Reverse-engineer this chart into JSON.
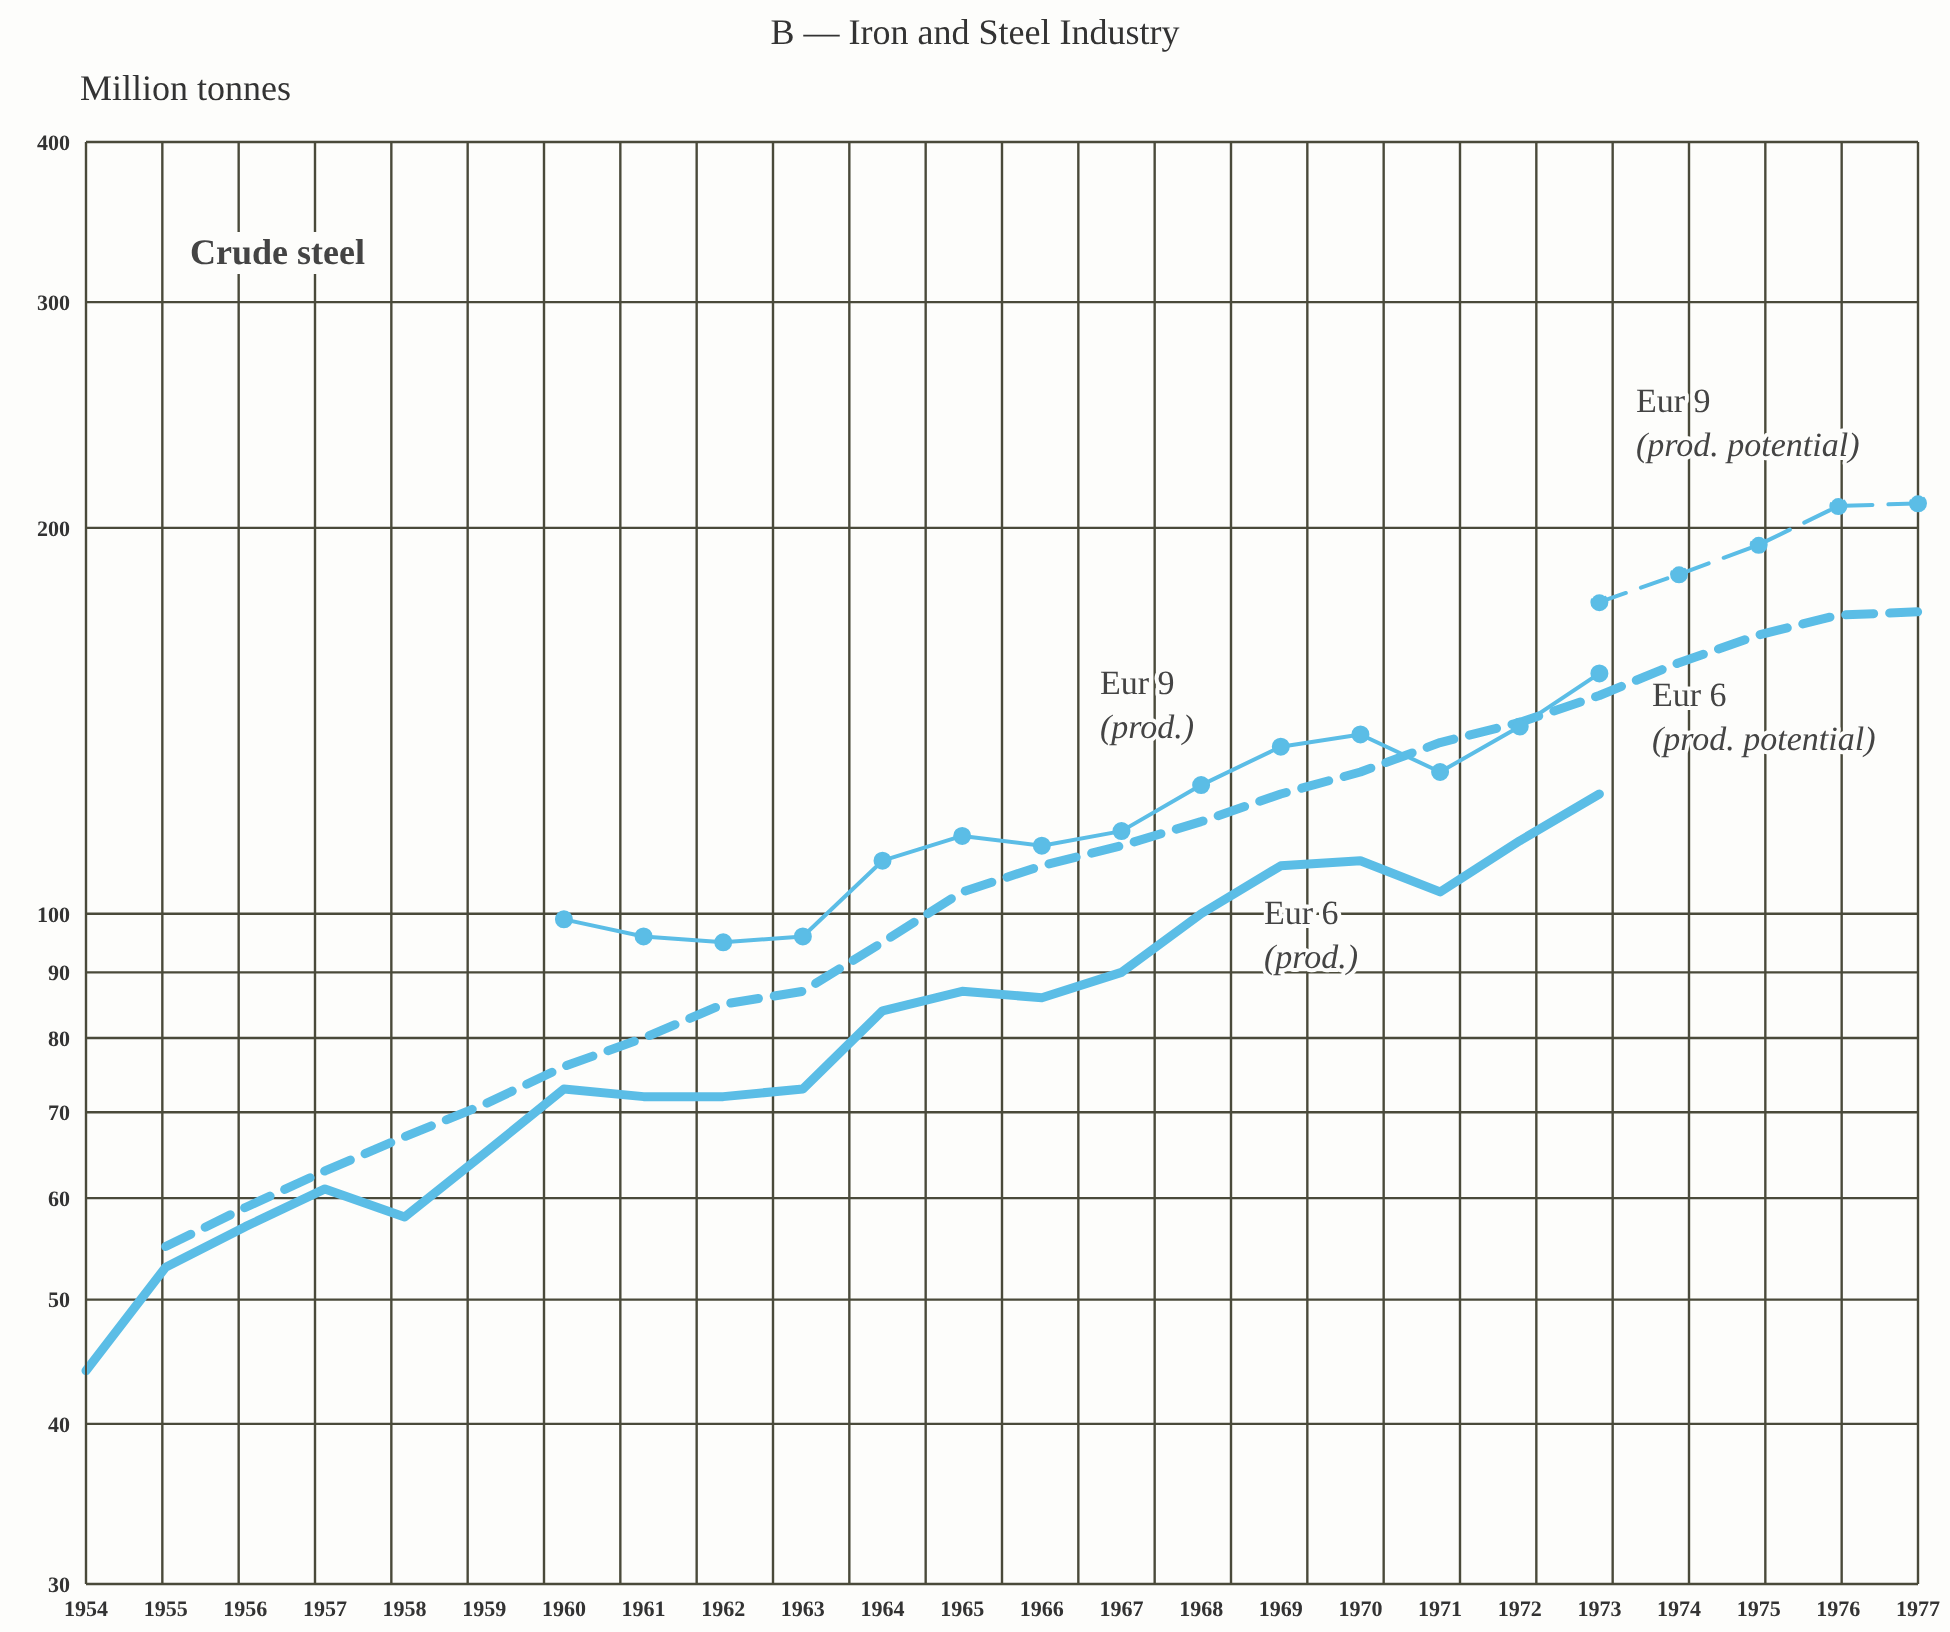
{
  "chart_data": {
    "type": "line",
    "title": "B — Iron and Steel Industry",
    "ylabel": "Million tonnes",
    "annotations": [
      "Crude steel"
    ],
    "categories": [
      "1954",
      "1955",
      "1956",
      "1957",
      "1958",
      "1959",
      "1960",
      "1961",
      "1962",
      "1963",
      "1964",
      "1965",
      "1966",
      "1967",
      "1968",
      "1969",
      "1970",
      "1971",
      "1972",
      "1973",
      "1974",
      "1975",
      "1976",
      "1977"
    ],
    "series": [
      {
        "name": "Eur 6 (prod.)",
        "color": "#5bbde6",
        "line_style": "solid",
        "marker": "none",
        "values": [
          44,
          53,
          57,
          61,
          58,
          65,
          73,
          72,
          72,
          73,
          84,
          87,
          86,
          90,
          100,
          109,
          110,
          104,
          114,
          124,
          null,
          null,
          null,
          null
        ]
      },
      {
        "name": "Eur 6 (prod. potential)",
        "color": "#5bbde6",
        "line_style": "dashed",
        "marker": "none",
        "values": [
          null,
          55,
          59,
          63,
          67,
          71,
          76,
          80,
          85,
          87,
          95,
          104,
          109,
          113,
          118,
          124,
          129,
          136,
          141,
          148,
          157,
          165,
          171,
          172
        ]
      },
      {
        "name": "Eur 9 (prod.)",
        "color": "#5bbde6",
        "line_style": "solid",
        "marker": "circle",
        "values": [
          null,
          null,
          null,
          null,
          null,
          null,
          99,
          96,
          95,
          96,
          110,
          115,
          113,
          116,
          126,
          135,
          138,
          129,
          140,
          154,
          null,
          null,
          null,
          null
        ]
      },
      {
        "name": "Eur 9 (prod. potential)",
        "color": "#5bbde6",
        "line_style": "dashed",
        "marker": "circle",
        "values": [
          null,
          null,
          null,
          null,
          null,
          null,
          null,
          null,
          null,
          null,
          null,
          null,
          null,
          null,
          null,
          null,
          null,
          null,
          null,
          175,
          184,
          194,
          208,
          209
        ]
      }
    ],
    "ylim": [
      30,
      400
    ],
    "yticks": [
      30,
      40,
      50,
      60,
      70,
      80,
      90,
      100,
      200,
      300,
      400
    ],
    "log": true,
    "grid": true
  }
}
